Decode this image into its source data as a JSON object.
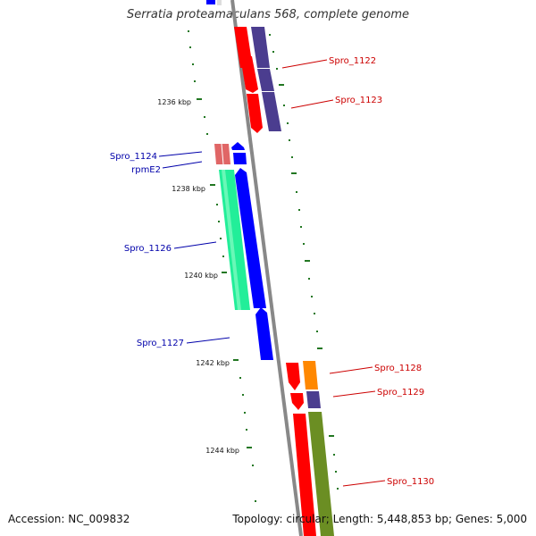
{
  "title": "Serratia proteamaculans 568, complete genome",
  "footer": {
    "accession": "Accession: NC_009832",
    "summary": "Topology: circular; Length: 5,448,853 bp; Genes: 5,000"
  },
  "colors": {
    "backbone": "#888888",
    "forward_label": "#cc0000",
    "reverse_label": "#0000aa",
    "tick": "#227722",
    "red": "#ff0000",
    "blue": "#0000ff",
    "navy": "#4b3d8f",
    "green": "#22ee99",
    "salmon": "#e06666",
    "orange": "#ff8800",
    "olive": "#6b8e23"
  },
  "kbp_ticks": [
    "1236 kbp",
    "1238 kbp",
    "1240 kbp",
    "1242 kbp",
    "1244 kbp"
  ],
  "gene_labels": [
    {
      "name": "Spro_1122",
      "strand": "forward"
    },
    {
      "name": "Spro_1123",
      "strand": "forward"
    },
    {
      "name": "Spro_1124",
      "strand": "reverse"
    },
    {
      "name": "rpmE2",
      "strand": "reverse"
    },
    {
      "name": "Spro_1126",
      "strand": "reverse"
    },
    {
      "name": "Spro_1127",
      "strand": "reverse"
    },
    {
      "name": "Spro_1128",
      "strand": "forward"
    },
    {
      "name": "Spro_1129",
      "strand": "forward"
    },
    {
      "name": "Spro_1130",
      "strand": "forward"
    }
  ]
}
